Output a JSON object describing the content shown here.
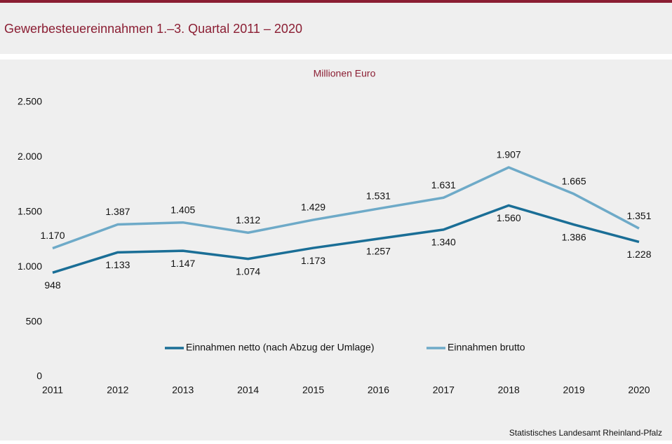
{
  "chart_data": {
    "type": "line",
    "title": "Gewerbesteuereinnahmen 1.–3. Quartal 2011 – 2020",
    "subtitle": "Millionen Euro",
    "source": "Statistisches Landesamt Rheinland-Pfalz",
    "categories": [
      "2011",
      "2012",
      "2013",
      "2014",
      "2015",
      "2016",
      "2017",
      "2018",
      "2019",
      "2020"
    ],
    "series": [
      {
        "name": "Einnahmen netto (nach Abzug der Umlage)",
        "color": "#1a6e96",
        "values": [
          948,
          1133,
          1147,
          1074,
          1173,
          1257,
          1340,
          1560,
          1386,
          1228
        ],
        "value_labels": [
          "948",
          "1.133",
          "1.147",
          "1.074",
          "1.173",
          "1.257",
          "1.340",
          "1.560",
          "1.386",
          "1.228"
        ]
      },
      {
        "name": "Einnahmen brutto",
        "color": "#6eaac8",
        "values": [
          1170,
          1387,
          1405,
          1312,
          1429,
          1531,
          1631,
          1907,
          1665,
          1351
        ],
        "value_labels": [
          "1.170",
          "1.387",
          "1.405",
          "1.312",
          "1.429",
          "1.531",
          "1.631",
          "1.907",
          "1.665",
          "1.351"
        ]
      }
    ],
    "ylim": [
      0,
      2500
    ],
    "yticks": [
      0,
      500,
      {
        "value": 1000,
        "label": "1.000"
      },
      {
        "value": 1500,
        "label": "1.500"
      },
      {
        "value": 2000,
        "label": "2.000"
      },
      {
        "value": 2500,
        "label": "2.500"
      }
    ],
    "grid": false
  }
}
